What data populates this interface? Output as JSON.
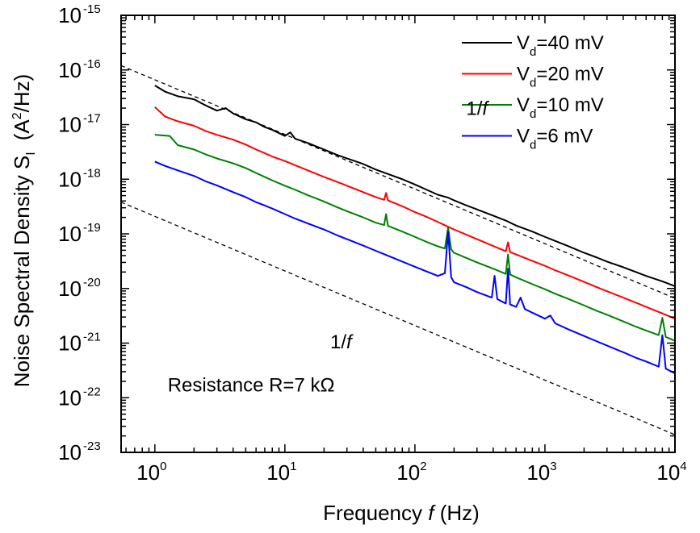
{
  "chart_data": {
    "type": "line",
    "xscale": "log",
    "yscale": "log",
    "xlim": [
      0.55,
      10000
    ],
    "ylim": [
      1e-23,
      1e-15
    ],
    "grid": false,
    "legend_position": "top-right",
    "xlabel": {
      "prefix": "Frequency ",
      "italic": "f",
      "suffix": " (Hz)"
    },
    "ylabel": {
      "main": "Noise Spectral Density S",
      "sub": "I",
      "unit_pre": "(A",
      "unit_sup": "2",
      "unit_post": "/Hz)"
    },
    "x_ticks": [
      {
        "base": "10",
        "exp": "0",
        "value": 1
      },
      {
        "base": "10",
        "exp": "1",
        "value": 10
      },
      {
        "base": "10",
        "exp": "2",
        "value": 100
      },
      {
        "base": "10",
        "exp": "3",
        "value": 1000
      },
      {
        "base": "10",
        "exp": "4",
        "value": 10000
      }
    ],
    "y_ticks": [
      {
        "base": "10",
        "exp": "-15",
        "value": 1e-15
      },
      {
        "base": "10",
        "exp": "-16",
        "value": 1e-16
      },
      {
        "base": "10",
        "exp": "-17",
        "value": 1e-17
      },
      {
        "base": "10",
        "exp": "-18",
        "value": 1e-18
      },
      {
        "base": "10",
        "exp": "-19",
        "value": 1e-19
      },
      {
        "base": "10",
        "exp": "-20",
        "value": 1e-20
      },
      {
        "base": "10",
        "exp": "-21",
        "value": 1e-21
      },
      {
        "base": "10",
        "exp": "-22",
        "value": 1e-22
      },
      {
        "base": "10",
        "exp": "-23",
        "value": 1e-23
      }
    ],
    "series": [
      {
        "name": {
          "main": "V",
          "sub": "d",
          "rest": "=40 mV"
        },
        "color": "#000000",
        "points": [
          [
            1,
            5.2e-17
          ],
          [
            1.2,
            4e-17
          ],
          [
            1.5,
            3.3e-17
          ],
          [
            2,
            2.9e-17
          ],
          [
            2.5,
            2.2e-17
          ],
          [
            3,
            1.8e-17
          ],
          [
            3.5,
            2e-17
          ],
          [
            4,
            1.6e-17
          ],
          [
            5,
            1.25e-17
          ],
          [
            6,
            1.1e-17
          ],
          [
            7,
            9e-18
          ],
          [
            8,
            8e-18
          ],
          [
            10,
            6.2e-18
          ],
          [
            11,
            7.2e-18
          ],
          [
            12,
            5.5e-18
          ],
          [
            15,
            4.6e-18
          ],
          [
            20,
            3.5e-18
          ],
          [
            25,
            2.8e-18
          ],
          [
            30,
            2.4e-18
          ],
          [
            40,
            1.9e-18
          ],
          [
            50,
            1.5e-18
          ],
          [
            60,
            1.28e-18
          ],
          [
            80,
            1e-18
          ],
          [
            100,
            8e-19
          ],
          [
            120,
            6.6e-19
          ],
          [
            150,
            5.2e-19
          ],
          [
            180,
            4.6e-19
          ],
          [
            200,
            4.1e-19
          ],
          [
            250,
            3.3e-19
          ],
          [
            300,
            2.8e-19
          ],
          [
            400,
            2.15e-19
          ],
          [
            500,
            1.75e-19
          ],
          [
            600,
            1.42e-19
          ],
          [
            800,
            1.1e-19
          ],
          [
            1000,
            8.8e-20
          ],
          [
            1200,
            7.4e-20
          ],
          [
            1500,
            6e-20
          ],
          [
            2000,
            4.5e-20
          ],
          [
            2500,
            3.7e-20
          ],
          [
            3000,
            3.1e-20
          ],
          [
            4000,
            2.45e-20
          ],
          [
            5000,
            2e-20
          ],
          [
            6000,
            1.7e-20
          ],
          [
            8000,
            1.35e-20
          ],
          [
            10000,
            1.1e-20
          ]
        ]
      },
      {
        "name": {
          "main": "V",
          "sub": "d",
          "rest": "=20 mV"
        },
        "color": "#ff0000",
        "points": [
          [
            1,
            2.1e-17
          ],
          [
            1.2,
            1.4e-17
          ],
          [
            1.5,
            1.15e-17
          ],
          [
            2,
            9.5e-18
          ],
          [
            2.5,
            7.5e-18
          ],
          [
            3,
            6.5e-18
          ],
          [
            4,
            5.3e-18
          ],
          [
            5,
            4.3e-18
          ],
          [
            6,
            3.5e-18
          ],
          [
            7,
            3e-18
          ],
          [
            8,
            2.6e-18
          ],
          [
            10,
            2.15e-18
          ],
          [
            12,
            1.8e-18
          ],
          [
            15,
            1.45e-18
          ],
          [
            20,
            1.1e-18
          ],
          [
            25,
            9e-19
          ],
          [
            30,
            7.6e-19
          ],
          [
            40,
            5.8e-19
          ],
          [
            50,
            4.7e-19
          ],
          [
            58,
            4.2e-19
          ],
          [
            60,
            5.6e-19
          ],
          [
            62,
            4.1e-19
          ],
          [
            80,
            3.2e-19
          ],
          [
            100,
            2.5e-19
          ],
          [
            120,
            2.1e-19
          ],
          [
            150,
            1.65e-19
          ],
          [
            180,
            1.35e-19
          ],
          [
            200,
            1.2e-19
          ],
          [
            250,
            9.6e-20
          ],
          [
            300,
            8e-20
          ],
          [
            400,
            6e-20
          ],
          [
            500,
            4.8e-20
          ],
          [
            520,
            7e-20
          ],
          [
            540,
            4.6e-20
          ],
          [
            600,
            4.2e-20
          ],
          [
            800,
            3.2e-20
          ],
          [
            1000,
            2.6e-20
          ],
          [
            1200,
            2.15e-20
          ],
          [
            1500,
            1.75e-20
          ],
          [
            2000,
            1.32e-20
          ],
          [
            2500,
            1.06e-20
          ],
          [
            3000,
            8.9e-21
          ],
          [
            4000,
            6.8e-21
          ],
          [
            5000,
            5.5e-21
          ],
          [
            6000,
            4.6e-21
          ],
          [
            8000,
            3.5e-21
          ],
          [
            10000,
            2.8e-21
          ]
        ]
      },
      {
        "name": {
          "main": "V",
          "sub": "d",
          "rest": "=10 mV"
        },
        "color": "#008000",
        "points": [
          [
            1,
            6.5e-18
          ],
          [
            1.3,
            6.2e-18
          ],
          [
            1.5,
            4.2e-18
          ],
          [
            2,
            3.5e-18
          ],
          [
            2.5,
            2.8e-18
          ],
          [
            3,
            2.4e-18
          ],
          [
            4,
            1.95e-18
          ],
          [
            5,
            1.6e-18
          ],
          [
            6,
            1.3e-18
          ],
          [
            7,
            1.1e-18
          ],
          [
            8,
            9.5e-19
          ],
          [
            10,
            7.6e-19
          ],
          [
            12,
            6.4e-19
          ],
          [
            15,
            5.1e-19
          ],
          [
            20,
            3.9e-19
          ],
          [
            25,
            3.1e-19
          ],
          [
            30,
            2.6e-19
          ],
          [
            40,
            2e-19
          ],
          [
            50,
            1.6e-19
          ],
          [
            58,
            1.45e-19
          ],
          [
            60,
            2.3e-19
          ],
          [
            62,
            1.4e-19
          ],
          [
            80,
            1.1e-19
          ],
          [
            100,
            8.8e-20
          ],
          [
            120,
            7.3e-20
          ],
          [
            150,
            5.9e-20
          ],
          [
            170,
            5.4e-20
          ],
          [
            180,
            1.3e-19
          ],
          [
            190,
            5.2e-20
          ],
          [
            200,
            4.5e-20
          ],
          [
            250,
            3.6e-20
          ],
          [
            300,
            3e-20
          ],
          [
            400,
            2.3e-20
          ],
          [
            500,
            1.85e-20
          ],
          [
            520,
            4.2e-20
          ],
          [
            540,
            1.8e-20
          ],
          [
            600,
            1.6e-20
          ],
          [
            800,
            1.2e-20
          ],
          [
            1000,
            9.7e-21
          ],
          [
            1200,
            8e-21
          ],
          [
            1500,
            6.5e-21
          ],
          [
            2000,
            4.9e-21
          ],
          [
            2500,
            3.9e-21
          ],
          [
            3000,
            3.3e-21
          ],
          [
            4000,
            2.5e-21
          ],
          [
            5000,
            2e-21
          ],
          [
            6000,
            1.7e-21
          ],
          [
            7500,
            1.4e-21
          ],
          [
            8000,
            2.9e-21
          ],
          [
            8500,
            1.3e-21
          ],
          [
            10000,
            1.1e-21
          ]
        ]
      },
      {
        "name": {
          "main": "V",
          "sub": "d",
          "rest": "=6 mV"
        },
        "color": "#0000ff",
        "points": [
          [
            1,
            2.1e-18
          ],
          [
            1.2,
            1.75e-18
          ],
          [
            1.5,
            1.45e-18
          ],
          [
            2,
            1.15e-18
          ],
          [
            2.5,
            9e-19
          ],
          [
            3,
            7.7e-19
          ],
          [
            4,
            5.8e-19
          ],
          [
            5,
            4.7e-19
          ],
          [
            6,
            3.8e-19
          ],
          [
            7,
            3.3e-19
          ],
          [
            8,
            2.9e-19
          ],
          [
            10,
            2.3e-19
          ],
          [
            12,
            1.9e-19
          ],
          [
            15,
            1.55e-19
          ],
          [
            20,
            1.2e-19
          ],
          [
            25,
            9.5e-20
          ],
          [
            30,
            8e-20
          ],
          [
            40,
            6.1e-20
          ],
          [
            50,
            4.9e-20
          ],
          [
            60,
            4.1e-20
          ],
          [
            80,
            3.1e-20
          ],
          [
            100,
            2.5e-20
          ],
          [
            120,
            2.1e-20
          ],
          [
            150,
            1.7e-20
          ],
          [
            170,
            1.9e-20
          ],
          [
            180,
            1.1e-19
          ],
          [
            190,
            1.6e-20
          ],
          [
            200,
            1.3e-20
          ],
          [
            250,
            1.05e-20
          ],
          [
            300,
            8.6e-21
          ],
          [
            390,
            6.8e-21
          ],
          [
            410,
            1.7e-20
          ],
          [
            430,
            6.4e-21
          ],
          [
            500,
            5.3e-21
          ],
          [
            520,
            2.3e-20
          ],
          [
            540,
            5.1e-21
          ],
          [
            600,
            4.6e-21
          ],
          [
            650,
            6.8e-21
          ],
          [
            700,
            4.2e-21
          ],
          [
            800,
            3.6e-21
          ],
          [
            1000,
            2.8e-21
          ],
          [
            1100,
            3.2e-21
          ],
          [
            1200,
            2.3e-21
          ],
          [
            1500,
            1.8e-21
          ],
          [
            2000,
            1.35e-21
          ],
          [
            2500,
            1.08e-21
          ],
          [
            3000,
            9e-22
          ],
          [
            4000,
            6.8e-22
          ],
          [
            5000,
            5.4e-22
          ],
          [
            6000,
            4.6e-22
          ],
          [
            7500,
            3.7e-22
          ],
          [
            8000,
            1.4e-21
          ],
          [
            8500,
            3.4e-22
          ],
          [
            10000,
            2.8e-22
          ]
        ]
      }
    ],
    "reference_lines": [
      {
        "label_main": "1/",
        "label_italic": "f",
        "points": [
          [
            0.55,
            1.2e-16
          ],
          [
            10000,
            6.6e-21
          ]
        ],
        "label_pos": [
          300,
          1.5e-17
        ]
      },
      {
        "label_main": "1/",
        "label_italic": "f",
        "points": [
          [
            0.55,
            3.8e-19
          ],
          [
            10000,
            2.1e-23
          ]
        ],
        "label_pos": [
          27,
          8e-22
        ]
      }
    ],
    "annotation": {
      "text": "Resistance R=7 kΩ",
      "pos": [
        5.5,
        1.3e-22
      ]
    }
  }
}
